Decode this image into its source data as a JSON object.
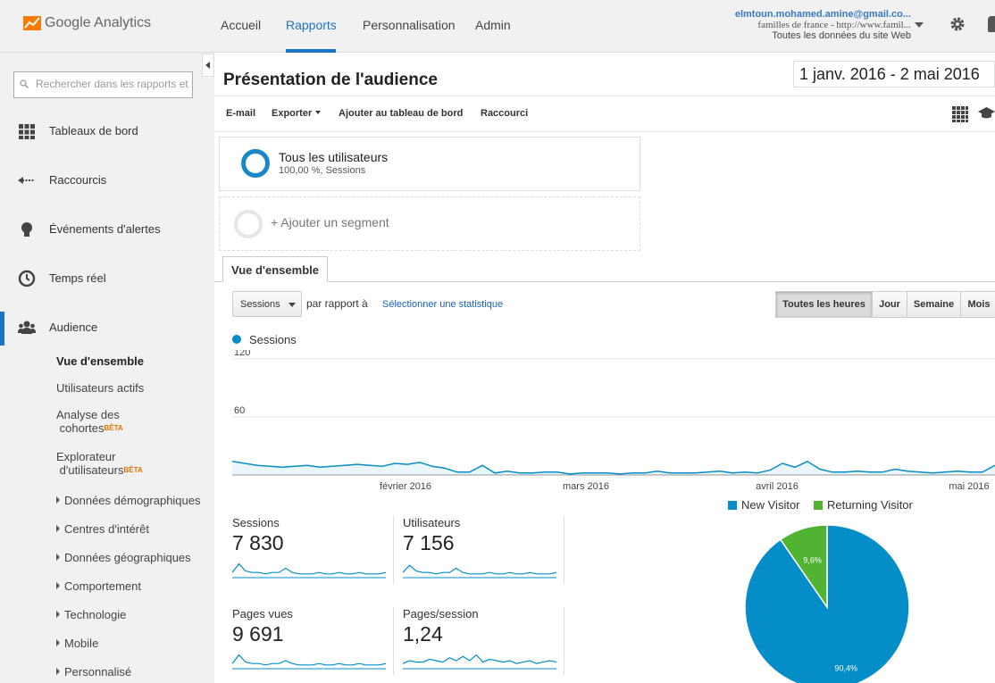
{
  "header": {
    "logo_text": "Google Analytics",
    "nav": [
      "Accueil",
      "Rapports",
      "Personnalisation",
      "Admin"
    ],
    "active_nav": "Rapports",
    "account": {
      "email": "elmtoun.mohamed.amine@gmail.co...",
      "property": "familles de france - http://www.famil...",
      "view": "Toutes les données du site Web"
    }
  },
  "sidebar": {
    "search_placeholder": "Rechercher dans les rapports et l'aide",
    "items": [
      "Tableaux de bord",
      "Raccourcis",
      "Événements d'alertes",
      "Temps réel",
      "Audience"
    ],
    "audience_sub": {
      "overview": "Vue d'ensemble",
      "active_users": "Utilisateurs actifs",
      "cohort_line1": "Analyse des",
      "cohort_line2": "cohortes",
      "explorer_line1": "Explorateur",
      "explorer_line2": "d'utilisateurs",
      "beta": "BÊTA",
      "groups": [
        "Données démographiques",
        "Centres d'intérêt",
        "Données géographiques",
        "Comportement",
        "Technologie",
        "Mobile",
        "Personnalisé"
      ]
    }
  },
  "main": {
    "title": "Présentation de l'audience",
    "date_range": "1 janv. 2016 - 2 mai 2016",
    "toolbar": {
      "email": "E-mail",
      "export": "Exporter",
      "add_dashboard": "Ajouter au tableau de bord",
      "shortcut": "Raccourci"
    },
    "segment": {
      "name": "Tous les utilisateurs",
      "detail": "100,00 %, Sessions"
    },
    "add_segment": "+ Ajouter un segment",
    "tab": "Vue d'ensemble",
    "metric_select": "Sessions",
    "vs_label": "par rapport à",
    "select_stat": "Sélectionner une statistique",
    "granularity": [
      "Toutes les heures",
      "Jour",
      "Semaine",
      "Mois"
    ],
    "active_granularity": "Toutes les heures",
    "chart_legend": "Sessions",
    "kpis": [
      {
        "label": "Sessions",
        "value": "7 830"
      },
      {
        "label": "Utilisateurs",
        "value": "7 156"
      },
      {
        "label": "Pages vues",
        "value": "9 691"
      },
      {
        "label": "Pages/session",
        "value": "1,24"
      }
    ]
  },
  "chart_data": [
    {
      "type": "line",
      "title": "",
      "series": [
        {
          "name": "Sessions"
        }
      ],
      "y_ticks": [
        "120",
        "60"
      ],
      "ylim": [
        0,
        120
      ],
      "x_tick_labels": [
        "février 2016",
        "mars 2016",
        "avril 2016",
        "mai 2016"
      ],
      "x": [
        0,
        2,
        4,
        6,
        8,
        10,
        12,
        14,
        16,
        18,
        20,
        22,
        24,
        26,
        28,
        30,
        32,
        34,
        36,
        38,
        40,
        42,
        44,
        46,
        48,
        50,
        52,
        54,
        56,
        58,
        60,
        62,
        64,
        66,
        68,
        70,
        72,
        74,
        76,
        78,
        80,
        82,
        84,
        86,
        88,
        90,
        92,
        94,
        96,
        98,
        100,
        102,
        104,
        106,
        108,
        110,
        112,
        114,
        116,
        118,
        120,
        122
      ],
      "values": [
        14,
        12,
        10,
        9,
        8,
        9,
        10,
        8,
        9,
        10,
        11,
        10,
        9,
        12,
        11,
        13,
        9,
        7,
        3,
        3,
        10,
        2,
        4,
        2,
        2,
        3,
        3,
        1,
        2,
        2,
        2,
        1,
        2,
        2,
        4,
        2,
        2,
        2,
        3,
        4,
        2,
        3,
        2,
        5,
        12,
        8,
        14,
        6,
        3,
        3,
        4,
        3,
        3,
        6,
        4,
        3,
        2,
        3,
        4,
        3,
        3,
        10
      ],
      "grid": true,
      "legend": "top-left"
    },
    {
      "type": "pie",
      "title": "",
      "labels": [
        "New Visitor",
        "Returning Visitor"
      ],
      "values": [
        90.4,
        9.6
      ],
      "value_labels": [
        "90,4%",
        "9,6%"
      ],
      "colors": [
        "#058dc7",
        "#50b432"
      ],
      "legend": "top"
    }
  ]
}
